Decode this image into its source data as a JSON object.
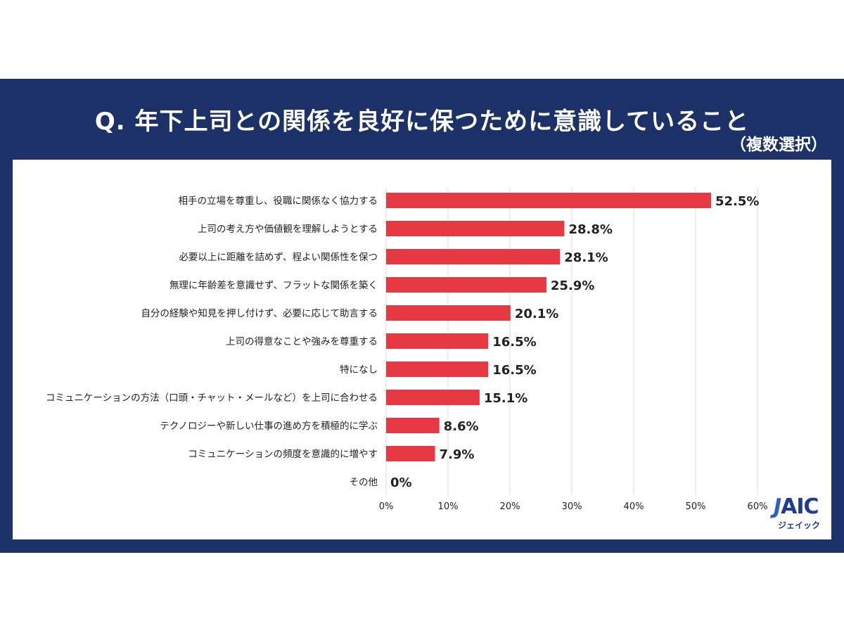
{
  "header": {
    "title": "Q. 年下上司との関係を良好に保つために意識していること",
    "subtitle": "（複数選択）"
  },
  "logo": {
    "mark_j": "J",
    "mark_rest": "AIC",
    "kana": "ジェイック"
  },
  "colors": {
    "banner": "#1b3168",
    "bar": "#e53a44",
    "grid": "#d9d9d9"
  },
  "chart_data": {
    "type": "bar",
    "orientation": "horizontal",
    "categories": [
      "相手の立場を尊重し、役職に関係なく協力する",
      "上司の考え方や価値観を理解しようとする",
      "必要以上に距離を詰めず、程よい関係性を保つ",
      "無理に年齢差を意識せず、フラットな関係を築く",
      "自分の経験や知見を押し付けず、必要に応じて助言する",
      "上司の得意なことや強みを尊重する",
      "特になし",
      "コミュニケーションの方法（口頭・チャット・メールなど）を上司に合わせる",
      "テクノロジーや新しい仕事の進め方を積極的に学ぶ",
      "コミュニケーションの頻度を意識的に増やす",
      "その他"
    ],
    "values": [
      52.5,
      28.8,
      28.1,
      25.9,
      20.1,
      16.5,
      16.5,
      15.1,
      8.6,
      7.9,
      0
    ],
    "value_labels": [
      "52.5%",
      "28.8%",
      "28.1%",
      "25.9%",
      "20.1%",
      "16.5%",
      "16.5%",
      "15.1%",
      "8.6%",
      "7.9%",
      "0%"
    ],
    "xlim": [
      0,
      60
    ],
    "xticks": [
      0,
      10,
      20,
      30,
      40,
      50,
      60
    ],
    "xtick_labels": [
      "0%",
      "10%",
      "20%",
      "30%",
      "40%",
      "50%",
      "60%"
    ],
    "grid": true,
    "legend": "none"
  }
}
